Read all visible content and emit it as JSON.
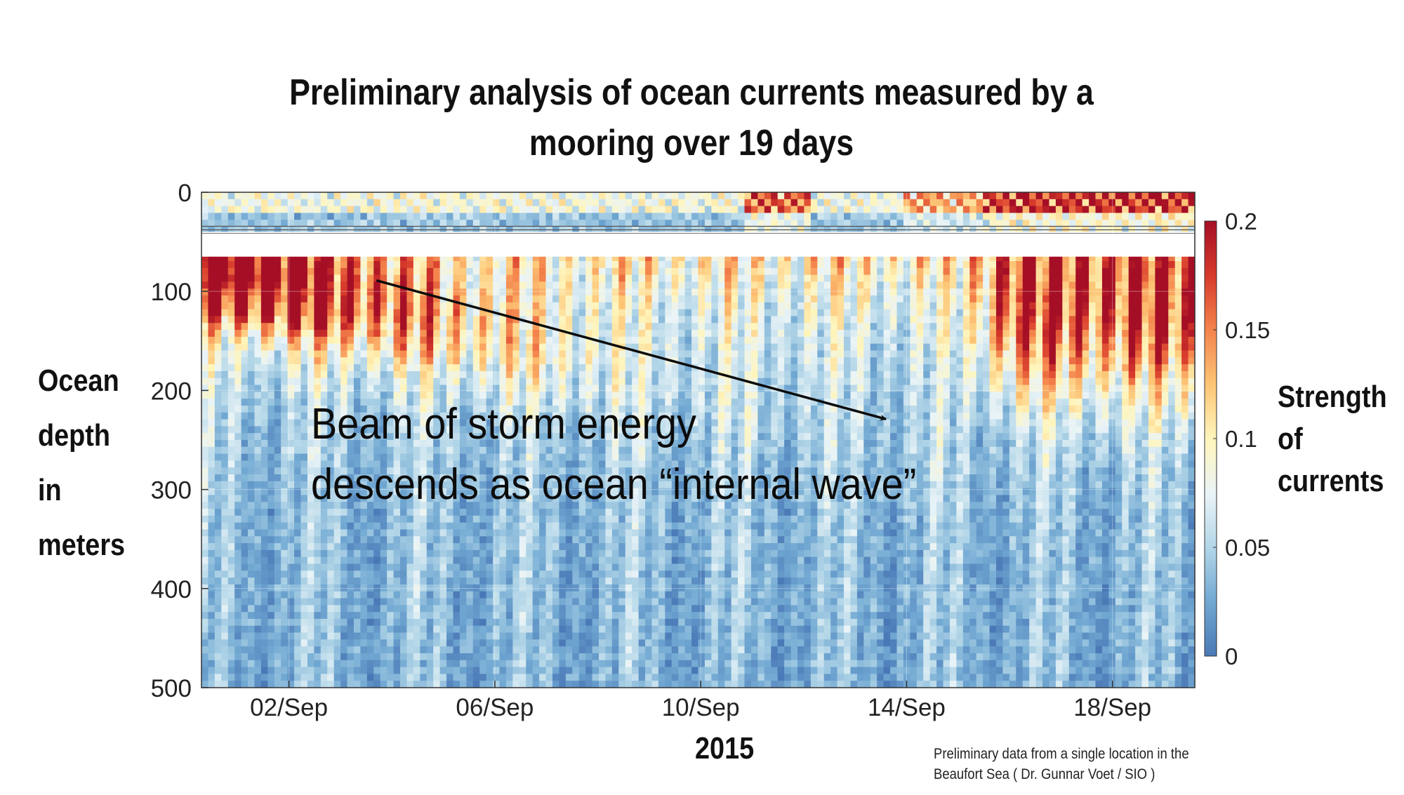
{
  "chart_data": {
    "type": "heatmap",
    "title_lines": [
      "Preliminary analysis of ocean currents measured by a",
      "mooring over 19 days"
    ],
    "xlabel": "2015",
    "ylabel_lines": [
      "Ocean",
      "depth",
      "in",
      "meters"
    ],
    "colorbar_label_lines": [
      "Strength",
      "of",
      "currents"
    ],
    "x_range_days": [
      0.3,
      19.6
    ],
    "x_ticks": [
      {
        "label": "02/Sep",
        "day": 2
      },
      {
        "label": "06/Sep",
        "day": 6
      },
      {
        "label": "10/Sep",
        "day": 10
      },
      {
        "label": "14/Sep",
        "day": 14
      },
      {
        "label": "18/Sep",
        "day": 18
      }
    ],
    "y_range_m": [
      0,
      500
    ],
    "y_ticks": [
      0,
      100,
      200,
      300,
      400,
      500
    ],
    "colorbar_range": [
      0,
      0.2
    ],
    "colorbar_ticks": [
      0,
      0.05,
      0.1,
      0.15,
      0.2
    ],
    "data_gap_depth_m": [
      40,
      65
    ],
    "colormap": [
      "#4a78b6",
      "#71a8d2",
      "#b3d6e8",
      "#eaf4f7",
      "#fff5bb",
      "#fdc576",
      "#f4844c",
      "#d73a2b",
      "#a50f26"
    ],
    "annotation": {
      "lines": [
        "Beam of storm energy",
        "descends as ocean “internal wave”"
      ],
      "arrow_start": {
        "day": 3.7,
        "depth_m": 89
      },
      "arrow_end": {
        "day": 13.6,
        "depth_m": 229
      }
    },
    "source_note_lines": [
      "Preliminary data from a single location in the",
      "Beaufort Sea ( Dr. Gunnar Voet / SIO )"
    ]
  }
}
